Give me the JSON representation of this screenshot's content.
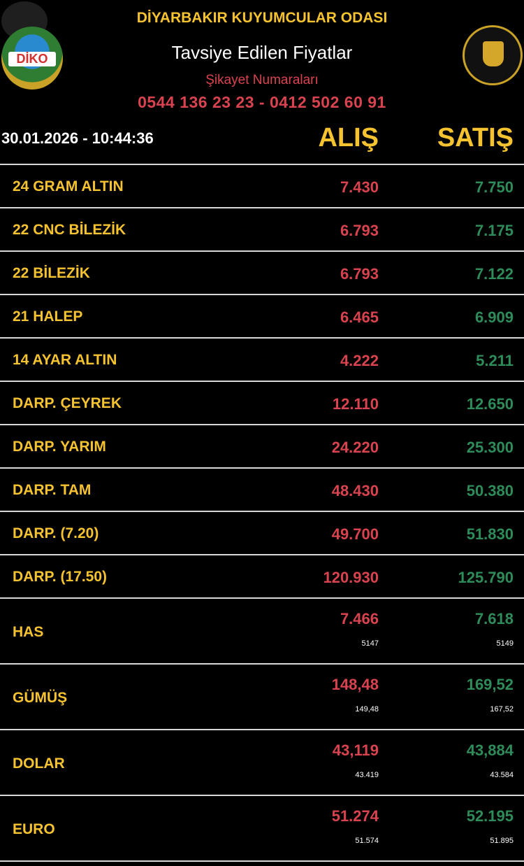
{
  "header": {
    "title": "DİYARBAKIR KUYUMCULAR ODASI",
    "subtitle": "Tavsiye Edilen Fiyatlar",
    "complaint_label": "Şikayet Numaraları",
    "phones": "0544 136 23 23 - 0412 502 60 91",
    "datetime": "30.01.2026 - 10:44:36",
    "col_buy": "ALIŞ",
    "col_sell": "SATIŞ",
    "logo_left_text": "DİKO"
  },
  "colors": {
    "gold": "#f5c230",
    "buy": "#d9434f",
    "sell": "#2e8b5a",
    "background": "#000000"
  },
  "rows": [
    {
      "name": "24 GRAM ALTIN",
      "buy": "7.430",
      "sell": "7.750"
    },
    {
      "name": "22 CNC BİLEZİK",
      "buy": "6.793",
      "sell": "7.175"
    },
    {
      "name": "22 BİLEZİK",
      "buy": "6.793",
      "sell": "7.122"
    },
    {
      "name": "21 HALEP",
      "buy": "6.465",
      "sell": "6.909"
    },
    {
      "name": "14 AYAR ALTIN",
      "buy": "4.222",
      "sell": "5.211"
    },
    {
      "name": "DARP. ÇEYREK",
      "buy": "12.110",
      "sell": "12.650"
    },
    {
      "name": "DARP. YARIM",
      "buy": "24.220",
      "sell": "25.300"
    },
    {
      "name": "DARP. TAM",
      "buy": "48.430",
      "sell": "50.380"
    },
    {
      "name": "DARP. (7.20)",
      "buy": "49.700",
      "sell": "51.830"
    },
    {
      "name": "DARP. (17.50)",
      "buy": "120.930",
      "sell": "125.790"
    }
  ],
  "tall_rows": [
    {
      "name": "HAS",
      "buy": "7.466",
      "sell": "7.618",
      "buy_sub": "5147",
      "sell_sub": "5149"
    },
    {
      "name": "GÜMÜŞ",
      "buy": "148,48",
      "sell": "169,52",
      "buy_sub": "149,48",
      "sell_sub": "167,52"
    },
    {
      "name": "DOLAR",
      "buy": "43,119",
      "sell": "43,884",
      "buy_sub": "43.419",
      "sell_sub": "43.584"
    },
    {
      "name": "EURO",
      "buy": "51.274",
      "sell": "52.195",
      "buy_sub": "51.574",
      "sell_sub": "51.895"
    }
  ]
}
